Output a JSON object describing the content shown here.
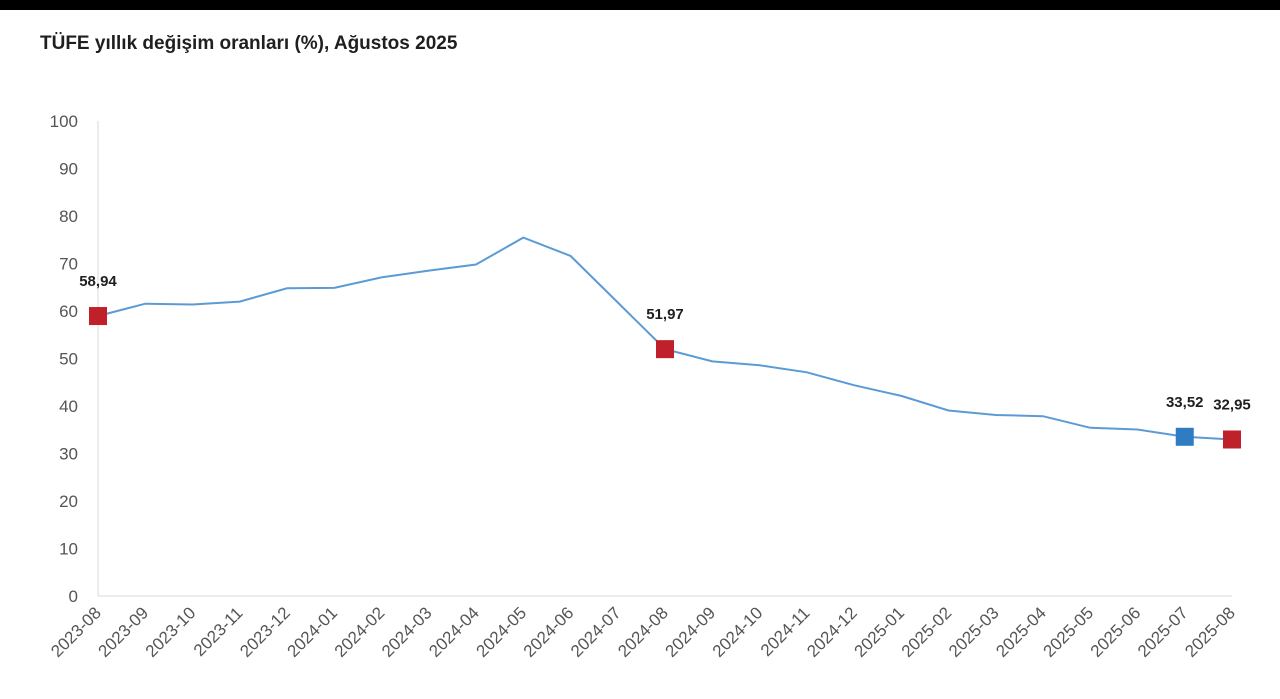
{
  "title": "TÜFE yıllık değişim oranları (%), Ağustos 2025",
  "colors": {
    "line": "#5b9bd5",
    "highlight_red": "#c0202a",
    "highlight_blue": "#2e7cc1",
    "axis": "#d9d9d9",
    "top_bar": "#000000"
  },
  "chart_data": {
    "type": "line",
    "title": "TÜFE yıllık değişim oranları (%), Ağustos 2025",
    "xlabel": "",
    "ylabel": "",
    "ylim": [
      0,
      100
    ],
    "yticks": [
      0,
      10,
      20,
      30,
      40,
      50,
      60,
      70,
      80,
      90,
      100
    ],
    "grid": false,
    "categories": [
      "2023-08",
      "2023-09",
      "2023-10",
      "2023-11",
      "2023-12",
      "2024-01",
      "2024-02",
      "2024-03",
      "2024-04",
      "2024-05",
      "2024-06",
      "2024-07",
      "2024-08",
      "2024-09",
      "2024-10",
      "2024-11",
      "2024-12",
      "2025-01",
      "2025-02",
      "2025-03",
      "2025-04",
      "2025-05",
      "2025-06",
      "2025-07",
      "2025-08"
    ],
    "series": [
      {
        "values": [
          58.94,
          61.53,
          61.36,
          61.98,
          64.77,
          64.86,
          67.07,
          68.5,
          69.8,
          75.45,
          71.6,
          61.78,
          51.97,
          49.38,
          48.58,
          47.09,
          44.38,
          42.12,
          39.05,
          38.1,
          37.86,
          35.41,
          35.05,
          33.52,
          32.95
        ]
      }
    ],
    "highlighted": [
      {
        "category": "2023-08",
        "label": "58,94",
        "color": "red"
      },
      {
        "category": "2024-08",
        "label": "51,97",
        "color": "red"
      },
      {
        "category": "2025-07",
        "label": "33,52",
        "color": "blue"
      },
      {
        "category": "2025-08",
        "label": "32,95",
        "color": "red"
      }
    ]
  }
}
